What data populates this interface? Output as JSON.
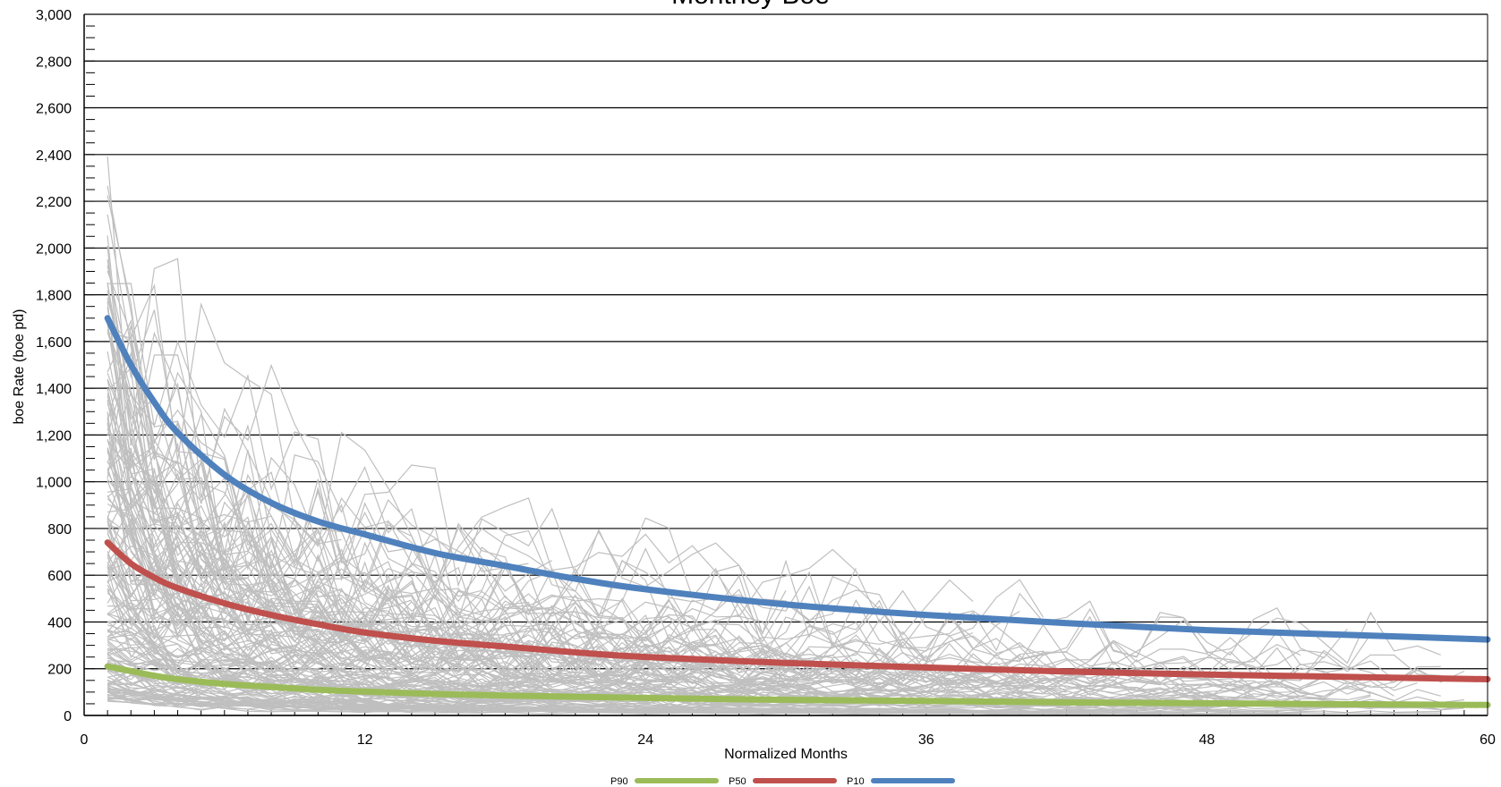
{
  "chart_data": {
    "type": "line",
    "title": "Montney Boe",
    "xlabel": "Normalized Months",
    "ylabel": "boe Rate (boe pd)",
    "xlim": [
      0,
      60
    ],
    "ylim": [
      0,
      3000
    ],
    "x_ticks": [
      0,
      12,
      24,
      36,
      48,
      60
    ],
    "y_ticks": [
      0,
      200,
      400,
      600,
      800,
      1000,
      1200,
      1400,
      1600,
      1800,
      2000,
      2200,
      2400,
      2600,
      2800,
      3000
    ],
    "x_tick_labels": [
      "0",
      "12",
      "24",
      "36",
      "48",
      "60"
    ],
    "y_tick_labels": [
      "0",
      "200",
      "400",
      "600",
      "800",
      "1,000",
      "1,200",
      "1,400",
      "1,600",
      "1,800",
      "2,000",
      "2,200",
      "2,400",
      "2,600",
      "2,800",
      "3,000"
    ],
    "grid": "horizontal",
    "legend_position": "bottom",
    "series": [
      {
        "name": "P90",
        "color": "#9bbb59",
        "x": [
          1,
          2,
          3,
          4,
          6,
          8,
          10,
          12,
          15,
          18,
          21,
          24,
          30,
          36,
          42,
          48,
          54,
          60
        ],
        "y": [
          210,
          190,
          170,
          155,
          135,
          122,
          110,
          102,
          92,
          85,
          80,
          75,
          67,
          62,
          56,
          52,
          48,
          45
        ]
      },
      {
        "name": "P50",
        "color": "#c0504d",
        "x": [
          1,
          2,
          3,
          4,
          6,
          8,
          10,
          12,
          15,
          18,
          21,
          24,
          30,
          36,
          42,
          48,
          54,
          60
        ],
        "y": [
          740,
          650,
          590,
          545,
          480,
          430,
          390,
          355,
          320,
          295,
          270,
          250,
          225,
          205,
          188,
          175,
          165,
          155
        ]
      },
      {
        "name": "P10",
        "color": "#4f81bd",
        "x": [
          1,
          2,
          3,
          4,
          6,
          8,
          10,
          12,
          15,
          18,
          21,
          24,
          30,
          36,
          42,
          48,
          54,
          60
        ],
        "y": [
          1700,
          1500,
          1340,
          1210,
          1030,
          910,
          830,
          775,
          695,
          640,
          585,
          540,
          475,
          430,
          395,
          365,
          345,
          325
        ]
      }
    ],
    "background_well_color": "#bfbfbf"
  }
}
